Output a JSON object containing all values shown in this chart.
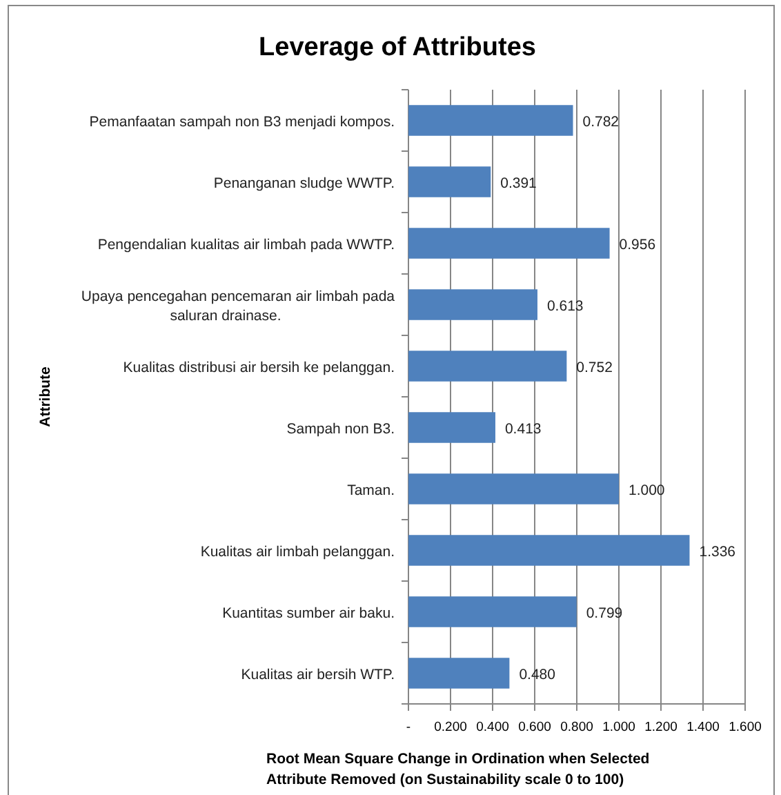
{
  "chart_data": {
    "type": "bar",
    "orientation": "horizontal",
    "title": "Leverage of Attributes",
    "xlabel": "Root Mean Square Change in Ordination when Selected Attribute Removed (on Sustainability  scale 0 to 100)",
    "ylabel": "Attribute",
    "categories": [
      "Pemanfaatan sampah non B3 menjadi kompos.",
      "Penanganan sludge WWTP.",
      "Pengendalian kualitas air limbah pada WWTP.",
      "Upaya pencegahan pencemaran air limbah pada saluran drainase.",
      "Kualitas distribusi air bersih ke pelanggan.",
      "Sampah non B3.",
      "Taman.",
      "Kualitas air limbah pelanggan.",
      "Kuantitas sumber air baku.",
      "Kualitas air bersih WTP."
    ],
    "values": [
      0.782,
      0.391,
      0.956,
      0.613,
      0.752,
      0.413,
      1.0,
      1.336,
      0.799,
      0.48
    ],
    "value_labels": [
      "0.782",
      "0.391",
      "0.956",
      "0.613",
      "0.752",
      "0.413",
      "1.000",
      "1.336",
      "0.799",
      "0.480"
    ],
    "color": "#4f81bd",
    "xlim": [
      0,
      1.6
    ],
    "xticks": [
      {
        "value": 0,
        "label": "-"
      },
      {
        "value": 0.2,
        "label": "0.200"
      },
      {
        "value": 0.4,
        "label": "0.400"
      },
      {
        "value": 0.6,
        "label": "0.600"
      },
      {
        "value": 0.8,
        "label": "0.800"
      },
      {
        "value": 1.0,
        "label": "1.000"
      },
      {
        "value": 1.2,
        "label": "1.200"
      },
      {
        "value": 1.4,
        "label": "1.400"
      },
      {
        "value": 1.6,
        "label": "1.600"
      }
    ],
    "grid": "x"
  }
}
